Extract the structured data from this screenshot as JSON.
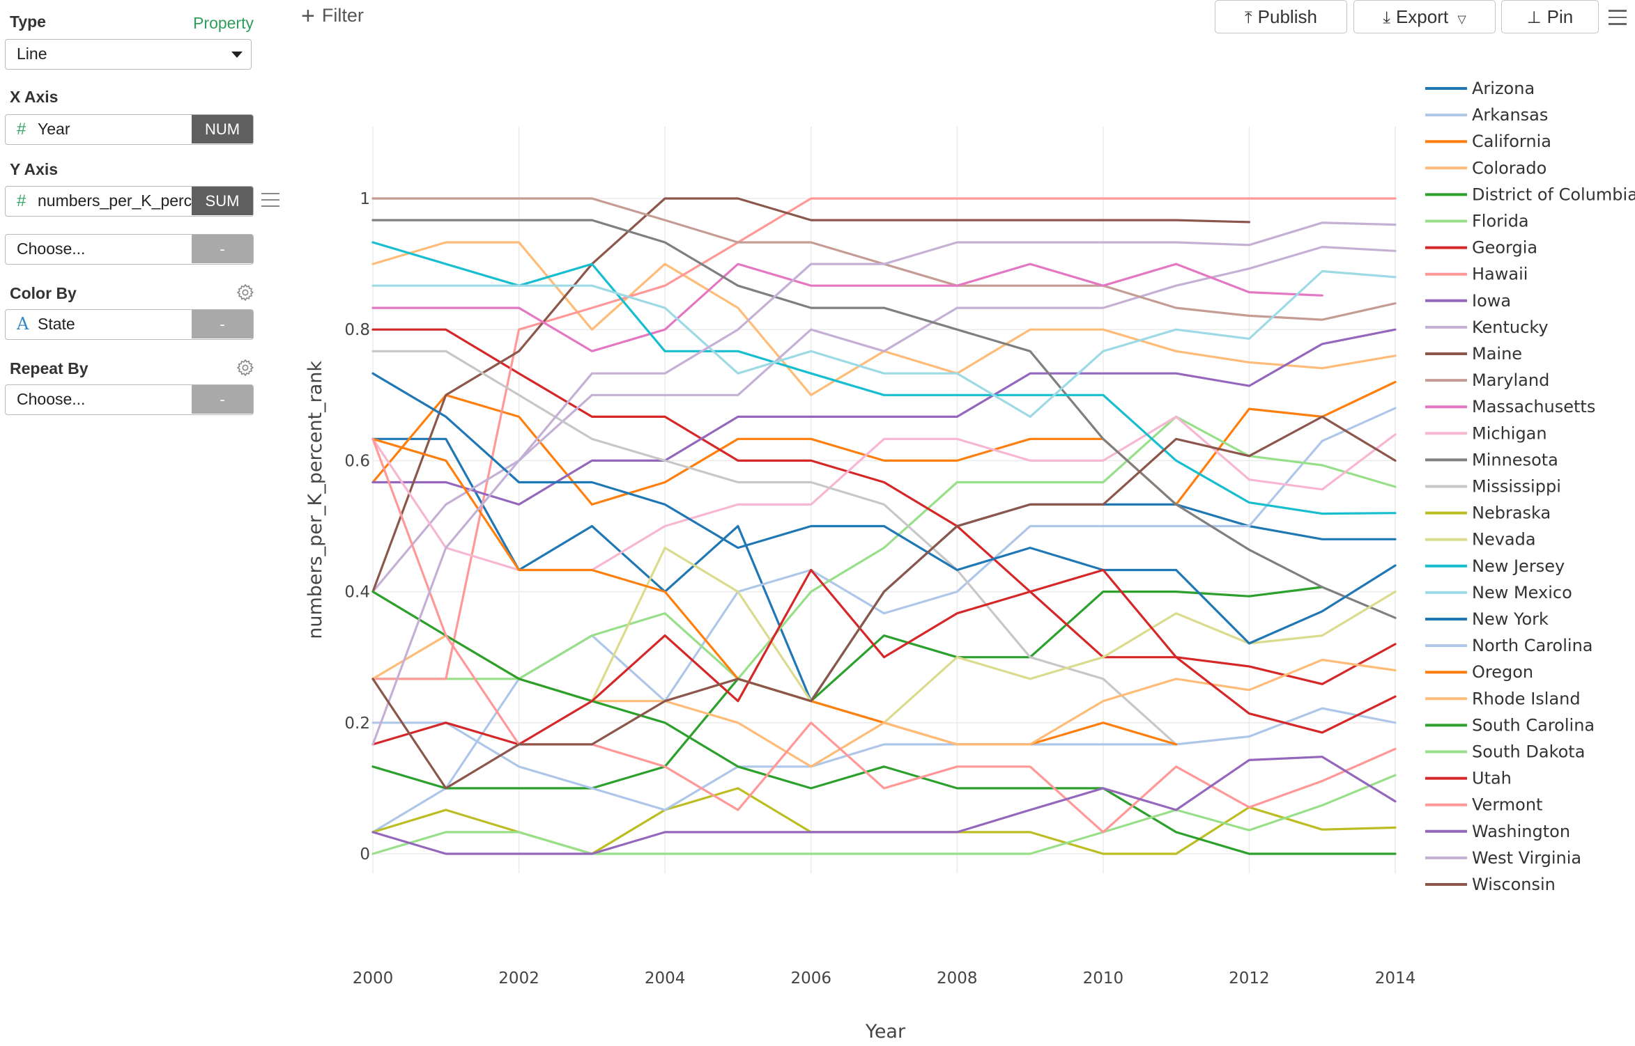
{
  "sidebar": {
    "type": {
      "label": "Type",
      "link": "Property",
      "value": "Line"
    },
    "x_axis": {
      "label": "X Axis",
      "icon": "number-icon",
      "field": "Year",
      "agg": "NUM"
    },
    "y_axis": {
      "label": "Y Axis",
      "icon": "number-icon",
      "field": "numbers_per_K_percent_rank",
      "agg": "SUM"
    },
    "y_axis_extra": {
      "field": "Choose...",
      "agg": "-"
    },
    "color_by": {
      "label": "Color By",
      "icon": "text-icon",
      "field": "State",
      "agg": "-"
    },
    "repeat_by": {
      "label": "Repeat By",
      "field": "Choose...",
      "agg": "-"
    }
  },
  "toolbar": {
    "filter_label": "Filter",
    "publish_label": "Publish",
    "export_label": "Export",
    "pin_label": "Pin"
  },
  "chart_data": {
    "type": "line",
    "xlabel": "Year",
    "ylabel": "numbers_per_K_percent_rank",
    "x_ticks": [
      "2000",
      "2002",
      "2004",
      "2006",
      "2008",
      "2010",
      "2012",
      "2014"
    ],
    "y_ticks": [
      "0",
      "0.2",
      "0.4",
      "0.6",
      "0.8",
      "1"
    ],
    "xlim": [
      2000,
      2014
    ],
    "ylim": [
      -0.03,
      1.11
    ],
    "grid": true,
    "legend_position": "right",
    "x": [
      2000,
      2001,
      2002,
      2003,
      2004,
      2005,
      2006,
      2007,
      2008,
      2009,
      2010,
      2011,
      2012,
      2013,
      2014
    ],
    "series": [
      {
        "name": "Arizona",
        "color": "#1f77b4",
        "values": [
          0.633,
          0.633,
          0.433,
          0.5,
          0.4,
          0.5,
          0.233,
          0.4,
          0.5,
          0.533,
          0.533,
          0.533,
          0.5,
          0.48,
          0.48
        ]
      },
      {
        "name": "Arkansas",
        "color": "#aec7e8",
        "values": [
          0.033,
          0.1,
          0.267,
          0.333,
          0.233,
          0.4,
          0.433,
          0.367,
          0.4,
          0.5,
          0.5,
          0.5,
          0.5,
          0.63,
          0.68
        ]
      },
      {
        "name": "California",
        "color": "#ff7f0e",
        "values": [
          0.567,
          0.7,
          0.667,
          0.533,
          0.567,
          0.633,
          0.633,
          0.6,
          0.6,
          0.633,
          0.633,
          0.533,
          0.679,
          0.667,
          0.72
        ]
      },
      {
        "name": "Colorado",
        "color": "#ffbb78",
        "values": [
          0.9,
          0.933,
          0.933,
          0.8,
          0.9,
          0.833,
          0.7,
          0.767,
          0.733,
          0.8,
          0.8,
          0.767,
          0.75,
          0.741,
          0.76
        ]
      },
      {
        "name": "District of Columbia",
        "color": "#2ca02c",
        "values": [
          0.133,
          0.1,
          0.1,
          0.1,
          0.133,
          0.267,
          0.233,
          0.333,
          0.3,
          0.3,
          0.4,
          0.4,
          0.393,
          0.407,
          null
        ]
      },
      {
        "name": "Florida",
        "color": "#98df8a",
        "values": [
          0.267,
          0.267,
          0.267,
          0.333,
          0.367,
          0.267,
          0.4,
          0.467,
          0.567,
          0.567,
          0.567,
          0.667,
          0.607,
          0.593,
          0.56
        ]
      },
      {
        "name": "Georgia",
        "color": "#d62728",
        "values": [
          0.8,
          0.8,
          0.733,
          0.667,
          0.667,
          0.6,
          0.6,
          0.567,
          0.5,
          0.4,
          0.3,
          0.3,
          0.286,
          0.259,
          0.32
        ]
      },
      {
        "name": "Hawaii",
        "color": "#ff9896",
        "values": [
          0.267,
          0.267,
          0.8,
          0.833,
          0.867,
          0.933,
          1.0,
          1.0,
          1.0,
          1.0,
          1.0,
          1.0,
          1.0,
          1.0,
          1.0
        ]
      },
      {
        "name": "Iowa",
        "color": "#9467bd",
        "values": [
          0.567,
          0.567,
          0.533,
          0.6,
          0.6,
          0.667,
          0.667,
          0.667,
          0.667,
          0.733,
          0.733,
          0.733,
          0.714,
          0.778,
          0.8
        ]
      },
      {
        "name": "Kentucky",
        "color": "#c5b0d5",
        "values": [
          0.4,
          0.533,
          0.6,
          0.7,
          0.7,
          0.7,
          0.8,
          0.767,
          0.833,
          0.833,
          0.833,
          0.867,
          0.893,
          0.926,
          0.92
        ]
      },
      {
        "name": "Maine",
        "color": "#8c564b",
        "values": [
          0.4,
          0.7,
          0.767,
          0.9,
          1.0,
          1.0,
          0.967,
          0.967,
          0.967,
          0.967,
          0.967,
          0.967,
          0.964,
          null,
          null
        ]
      },
      {
        "name": "Maryland",
        "color": "#c49c94",
        "values": [
          1.0,
          1.0,
          1.0,
          1.0,
          0.967,
          0.933,
          0.933,
          0.9,
          0.867,
          0.867,
          0.867,
          0.833,
          0.821,
          0.815,
          0.84
        ]
      },
      {
        "name": "Massachusetts",
        "color": "#e377c2",
        "values": [
          0.833,
          0.833,
          0.833,
          0.767,
          0.8,
          0.9,
          0.867,
          0.867,
          0.867,
          0.9,
          0.867,
          0.9,
          0.857,
          0.852,
          null
        ]
      },
      {
        "name": "Michigan",
        "color": "#f7b6d2",
        "values": [
          0.633,
          0.467,
          0.433,
          0.433,
          0.5,
          0.533,
          0.533,
          0.633,
          0.633,
          0.6,
          0.6,
          0.667,
          0.571,
          0.556,
          0.64
        ]
      },
      {
        "name": "Minnesota",
        "color": "#7f7f7f",
        "values": [
          0.967,
          0.967,
          0.967,
          0.967,
          0.933,
          0.867,
          0.833,
          0.833,
          0.8,
          0.767,
          0.633,
          0.533,
          0.464,
          0.407,
          0.36
        ]
      },
      {
        "name": "Mississippi",
        "color": "#c7c7c7",
        "values": [
          0.767,
          0.767,
          0.7,
          0.633,
          0.6,
          0.567,
          0.567,
          0.533,
          0.433,
          0.3,
          0.267,
          0.167,
          null,
          null,
          null
        ]
      },
      {
        "name": "Nebraska",
        "color": "#bcbd22",
        "values": [
          0.033,
          0.067,
          0.033,
          0.0,
          0.067,
          0.1,
          0.033,
          0.033,
          0.033,
          0.033,
          0.0,
          0.0,
          0.071,
          0.037,
          0.04
        ]
      },
      {
        "name": "Nevada",
        "color": "#dbdb8d",
        "values": [
          0.4,
          0.333,
          0.267,
          0.233,
          0.467,
          0.4,
          0.233,
          0.2,
          0.3,
          0.267,
          0.3,
          0.367,
          0.321,
          0.333,
          0.4
        ]
      },
      {
        "name": "New Jersey",
        "color": "#17becf",
        "values": [
          0.933,
          0.9,
          0.867,
          0.9,
          0.767,
          0.767,
          0.733,
          0.7,
          0.7,
          0.7,
          0.7,
          0.6,
          0.536,
          0.519,
          0.52
        ]
      },
      {
        "name": "New Mexico",
        "color": "#9edae5",
        "values": [
          0.867,
          0.867,
          0.867,
          0.867,
          0.833,
          0.733,
          0.767,
          0.733,
          0.733,
          0.667,
          0.767,
          0.8,
          0.786,
          0.889,
          0.88
        ]
      },
      {
        "name": "New York",
        "color": "#1f77b4",
        "values": [
          0.733,
          0.667,
          0.567,
          0.567,
          0.533,
          0.467,
          0.5,
          0.5,
          0.433,
          0.467,
          0.433,
          0.433,
          0.321,
          0.37,
          0.44
        ]
      },
      {
        "name": "North Carolina",
        "color": "#aec7e8",
        "values": [
          0.2,
          0.2,
          0.133,
          0.1,
          0.067,
          0.133,
          0.133,
          0.167,
          0.167,
          0.167,
          0.167,
          0.167,
          0.179,
          0.222,
          0.2
        ]
      },
      {
        "name": "Oregon",
        "color": "#ff7f0e",
        "values": [
          0.633,
          0.6,
          0.433,
          0.433,
          0.4,
          0.267,
          0.233,
          0.2,
          0.167,
          0.167,
          0.2,
          0.167,
          null,
          null,
          null
        ]
      },
      {
        "name": "Rhode Island",
        "color": "#ffbb78",
        "values": [
          0.267,
          0.333,
          0.267,
          0.233,
          0.233,
          0.2,
          0.133,
          0.2,
          0.167,
          0.167,
          0.233,
          0.267,
          0.25,
          0.296,
          0.28
        ]
      },
      {
        "name": "South Carolina",
        "color": "#2ca02c",
        "values": [
          0.4,
          0.333,
          0.267,
          0.233,
          0.2,
          0.133,
          0.1,
          0.133,
          0.1,
          0.1,
          0.1,
          0.033,
          0.0,
          0.0,
          0.0
        ]
      },
      {
        "name": "South Dakota",
        "color": "#98df8a",
        "values": [
          0.0,
          0.033,
          0.033,
          0.0,
          0.0,
          0.0,
          0.0,
          0.0,
          0.0,
          0.0,
          0.033,
          0.067,
          0.036,
          0.074,
          0.12
        ]
      },
      {
        "name": "Utah",
        "color": "#d62728",
        "values": [
          0.167,
          0.2,
          0.167,
          0.233,
          0.333,
          0.233,
          0.433,
          0.3,
          0.367,
          0.4,
          0.433,
          0.3,
          0.214,
          0.185,
          0.24
        ]
      },
      {
        "name": "Vermont",
        "color": "#ff9896",
        "values": [
          0.633,
          0.333,
          0.167,
          0.167,
          0.133,
          0.067,
          0.2,
          0.1,
          0.133,
          0.133,
          0.033,
          0.133,
          0.071,
          0.111,
          0.16
        ]
      },
      {
        "name": "Washington",
        "color": "#9467bd",
        "values": [
          0.033,
          0.0,
          0.0,
          0.0,
          0.033,
          0.033,
          0.033,
          0.033,
          0.033,
          0.067,
          0.1,
          0.067,
          0.143,
          0.148,
          0.08
        ]
      },
      {
        "name": "West Virginia",
        "color": "#c5b0d5",
        "values": [
          0.167,
          0.467,
          0.6,
          0.733,
          0.733,
          0.8,
          0.9,
          0.9,
          0.933,
          0.933,
          0.933,
          0.933,
          0.929,
          0.963,
          0.96
        ]
      },
      {
        "name": "Wisconsin",
        "color": "#8c564b",
        "values": [
          0.267,
          0.1,
          0.167,
          0.167,
          0.233,
          0.267,
          0.233,
          0.4,
          0.5,
          0.533,
          0.533,
          0.633,
          0.607,
          0.667,
          0.6
        ]
      }
    ]
  }
}
